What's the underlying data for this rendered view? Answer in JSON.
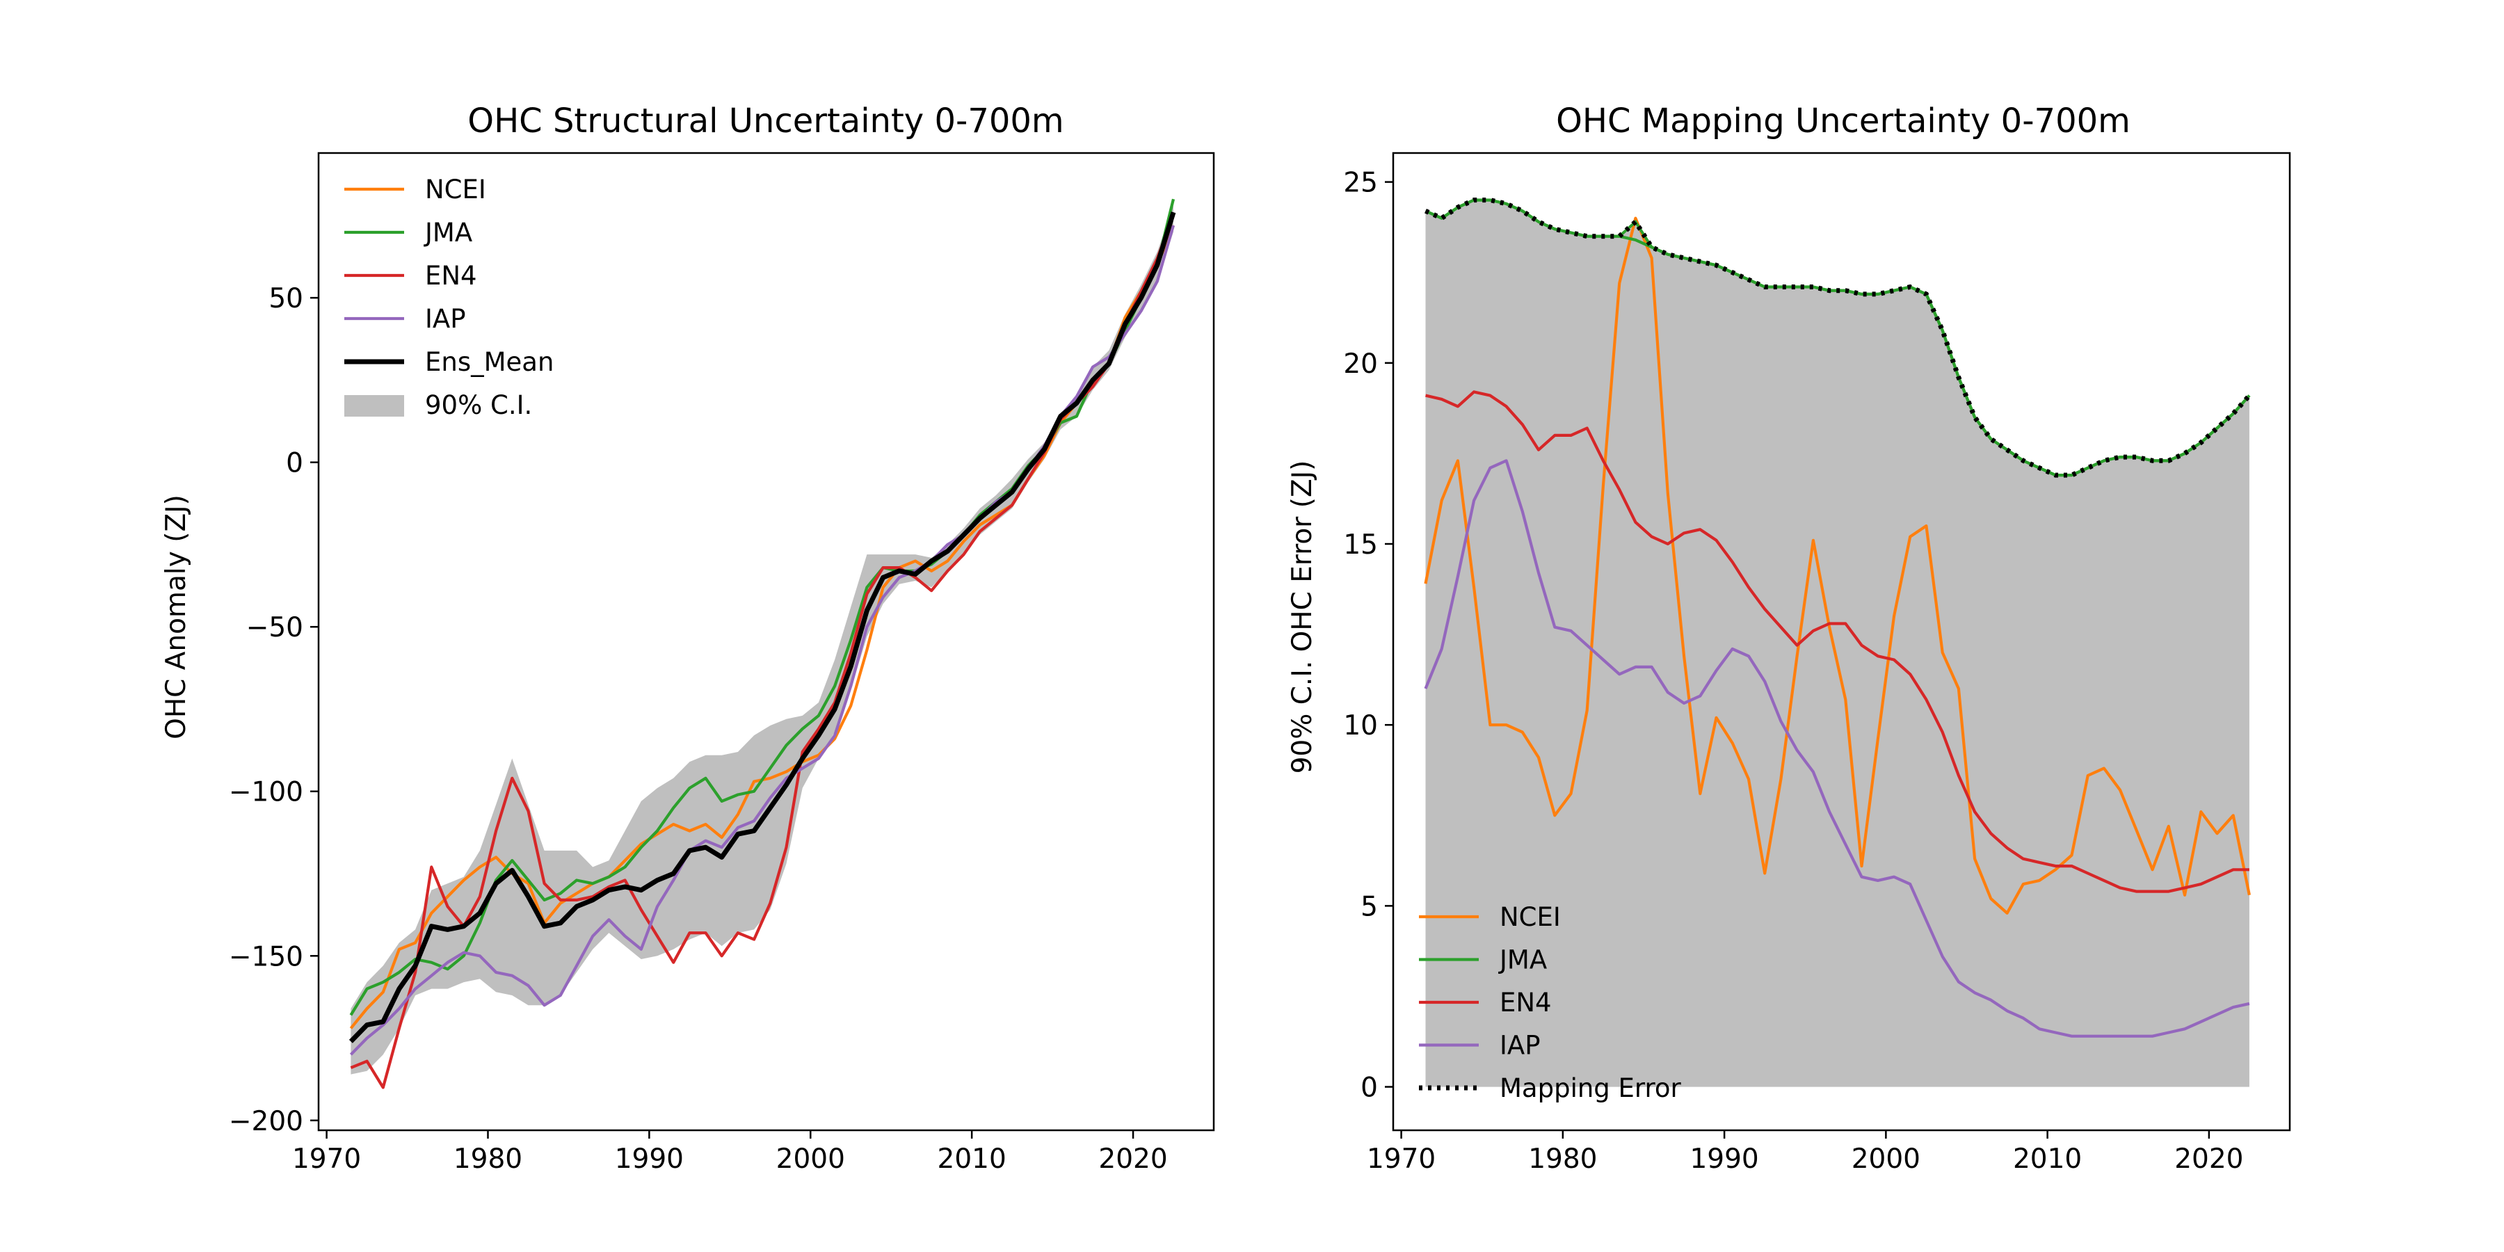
{
  "chart_data": [
    {
      "type": "line",
      "title": "OHC Structural Uncertainty 0-700m",
      "xlabel": "",
      "ylabel": "OHC Anomaly (ZJ)",
      "xlim": [
        1969.5,
        2025
      ],
      "ylim": [
        -203,
        94
      ],
      "xticks": [
        1970,
        1980,
        1990,
        2000,
        2010,
        2020
      ],
      "yticks": [
        -200,
        -150,
        -100,
        -50,
        0,
        50
      ],
      "grid": false,
      "legend_position": "top-left",
      "x": [
        1971.5,
        1972.5,
        1973.5,
        1974.5,
        1975.5,
        1976.5,
        1977.5,
        1978.5,
        1979.5,
        1980.5,
        1981.5,
        1982.5,
        1983.5,
        1984.5,
        1985.5,
        1986.5,
        1987.5,
        1988.5,
        1989.5,
        1990.5,
        1991.5,
        1992.5,
        1993.5,
        1994.5,
        1995.5,
        1996.5,
        1997.5,
        1998.5,
        1999.5,
        2000.5,
        2001.5,
        2002.5,
        2003.5,
        2004.5,
        2005.5,
        2006.5,
        2007.5,
        2008.5,
        2009.5,
        2010.5,
        2011.5,
        2012.5,
        2013.5,
        2014.5,
        2015.5,
        2016.5,
        2017.5,
        2018.5,
        2019.5,
        2020.5,
        2021.5,
        2022.5
      ],
      "series": [
        {
          "name": "NCEI",
          "color": "#ff7f0e",
          "values": [
            -172,
            -166,
            -161,
            -148,
            -146,
            -137,
            -132,
            -127,
            -123,
            -120,
            -125,
            -128,
            -140,
            -134,
            -131,
            -128,
            -126,
            -121,
            -116,
            -113,
            -110,
            -112,
            -110,
            -114,
            -107,
            -97,
            -96,
            -94,
            -91,
            -89,
            -84,
            -74,
            -57,
            -38,
            -32,
            -30,
            -33,
            -30,
            -24,
            -19,
            -16,
            -13,
            -5,
            2,
            12,
            18,
            25,
            30,
            44,
            52,
            60,
            72
          ]
        },
        {
          "name": "JMA",
          "color": "#2ca02c",
          "values": [
            -168,
            -160,
            -158,
            -155,
            -151,
            -152,
            -154,
            -150,
            -140,
            -127,
            -121,
            -127,
            -133,
            -131,
            -127,
            -128,
            -126,
            -123,
            -117,
            -112,
            -105,
            -99,
            -96,
            -103,
            -101,
            -100,
            -93,
            -86,
            -81,
            -77,
            -68,
            -54,
            -38,
            -32,
            -33,
            -33,
            -31,
            -27,
            -22,
            -16,
            -12,
            -8,
            -1,
            4,
            12,
            14,
            25,
            30,
            40,
            50,
            60,
            80
          ]
        },
        {
          "name": "EN4",
          "color": "#d62728",
          "values": [
            -184,
            -182,
            -190,
            -172,
            -155,
            -123,
            -135,
            -141,
            -132,
            -112,
            -96,
            -106,
            -128,
            -133,
            -133,
            -132,
            -129,
            -127,
            -136,
            -144,
            -152,
            -143,
            -143,
            -150,
            -143,
            -145,
            -134,
            -117,
            -88,
            -81,
            -73,
            -58,
            -40,
            -32,
            -32,
            -35,
            -39,
            -33,
            -28,
            -21,
            -17,
            -13,
            -5,
            3,
            13,
            18,
            23,
            30,
            42,
            52,
            62,
            75
          ]
        },
        {
          "name": "IAP",
          "color": "#9467bd",
          "values": [
            -180,
            -175,
            -171,
            -166,
            -160,
            -156,
            -152,
            -149,
            -150,
            -155,
            -156,
            -159,
            -165,
            -162,
            -153,
            -144,
            -139,
            -144,
            -148,
            -135,
            -127,
            -118,
            -115,
            -117,
            -111,
            -109,
            -102,
            -96,
            -93,
            -90,
            -83,
            -68,
            -50,
            -41,
            -35,
            -33,
            -30,
            -25,
            -22,
            -17,
            -12,
            -9,
            -2,
            5,
            14,
            20,
            29,
            32,
            39,
            46,
            55,
            72
          ]
        },
        {
          "name": "Ens_Mean",
          "color": "#000000",
          "values": [
            -176,
            -171,
            -170,
            -160,
            -153,
            -141,
            -142,
            -141,
            -137,
            -128,
            -124,
            -132,
            -141,
            -140,
            -135,
            -133,
            -130,
            -129,
            -130,
            -127,
            -125,
            -118,
            -117,
            -120,
            -113,
            -112,
            -105,
            -98,
            -90,
            -83,
            -75,
            -62,
            -45,
            -35,
            -33,
            -34,
            -30,
            -27,
            -22,
            -17,
            -13,
            -9,
            -2,
            4,
            14,
            18,
            25,
            30,
            42,
            50,
            60,
            76
          ]
        }
      ],
      "band": {
        "name": "90% C.I.",
        "color": "#bfbfbf",
        "upper": [
          -166,
          -158,
          -153,
          -146,
          -142,
          -130,
          -128,
          -126,
          -118,
          -104,
          -90,
          -104,
          -118,
          -118,
          -118,
          -123,
          -121,
          -112,
          -103,
          -99,
          -96,
          -91,
          -89,
          -89,
          -88,
          -83,
          -80,
          -78,
          -77,
          -73,
          -60,
          -44,
          -28,
          -28,
          -28,
          -28,
          -29,
          -25,
          -20,
          -14,
          -10,
          -5,
          1,
          6,
          15,
          20,
          29,
          34,
          45,
          54,
          64,
          78
        ],
        "lower": [
          -186,
          -185,
          -180,
          -172,
          -162,
          -160,
          -160,
          -158,
          -157,
          -161,
          -162,
          -165,
          -165,
          -162,
          -155,
          -148,
          -143,
          -147,
          -151,
          -150,
          -148,
          -145,
          -143,
          -147,
          -143,
          -142,
          -136,
          -122,
          -99,
          -90,
          -82,
          -69,
          -53,
          -43,
          -37,
          -36,
          -38,
          -33,
          -28,
          -22,
          -18,
          -14,
          -6,
          1,
          10,
          14,
          22,
          28,
          38,
          46,
          55,
          70
        ]
      }
    },
    {
      "type": "line",
      "title": "OHC Mapping Uncertainty 0-700m",
      "xlabel": "",
      "ylabel": "90% C.I. OHC Error (ZJ)",
      "xlim": [
        1969.5,
        2025
      ],
      "ylim": [
        -1.2,
        25.8
      ],
      "xticks": [
        1970,
        1980,
        1990,
        2000,
        2010,
        2020
      ],
      "yticks": [
        0,
        5,
        10,
        15,
        20,
        25
      ],
      "grid": false,
      "legend_position": "bottom-left",
      "x": [
        1971.5,
        1972.5,
        1973.5,
        1974.5,
        1975.5,
        1976.5,
        1977.5,
        1978.5,
        1979.5,
        1980.5,
        1981.5,
        1982.5,
        1983.5,
        1984.5,
        1985.5,
        1986.5,
        1987.5,
        1988.5,
        1989.5,
        1990.5,
        1991.5,
        1992.5,
        1993.5,
        1994.5,
        1995.5,
        1996.5,
        1997.5,
        1998.5,
        1999.5,
        2000.5,
        2001.5,
        2002.5,
        2003.5,
        2004.5,
        2005.5,
        2006.5,
        2007.5,
        2008.5,
        2009.5,
        2010.5,
        2011.5,
        2012.5,
        2013.5,
        2014.5,
        2015.5,
        2016.5,
        2017.5,
        2018.5,
        2019.5,
        2020.5,
        2021.5,
        2022.5
      ],
      "series": [
        {
          "name": "NCEI",
          "color": "#ff7f0e",
          "values": [
            13.9,
            16.2,
            17.3,
            13.8,
            10.0,
            10.0,
            9.8,
            9.1,
            7.5,
            8.1,
            10.4,
            16.6,
            22.2,
            24.0,
            22.9,
            16.4,
            11.9,
            8.1,
            10.2,
            9.5,
            8.5,
            5.9,
            8.5,
            11.9,
            15.1,
            12.7,
            10.7,
            6.1,
            9.6,
            13.0,
            15.2,
            15.5,
            12.0,
            11.0,
            6.3,
            5.2,
            4.8,
            5.6,
            5.7,
            6.0,
            6.4,
            8.6,
            8.8,
            8.2,
            7.1,
            6.0,
            7.2,
            5.3,
            7.6,
            7.0,
            7.5,
            5.3
          ]
        },
        {
          "name": "JMA",
          "color": "#2ca02c",
          "values": [
            24.2,
            24.0,
            24.3,
            24.5,
            24.5,
            24.4,
            24.2,
            23.9,
            23.7,
            23.6,
            23.5,
            23.5,
            23.5,
            23.4,
            23.2,
            23.0,
            22.9,
            22.8,
            22.7,
            22.5,
            22.3,
            22.1,
            22.1,
            22.1,
            22.1,
            22.0,
            22.0,
            21.9,
            21.9,
            22.0,
            22.1,
            21.9,
            20.9,
            19.6,
            18.5,
            17.9,
            17.6,
            17.3,
            17.1,
            16.9,
            16.9,
            17.1,
            17.3,
            17.4,
            17.4,
            17.3,
            17.3,
            17.5,
            17.8,
            18.2,
            18.6,
            19.1
          ]
        },
        {
          "name": "EN4",
          "color": "#d62728",
          "values": [
            19.1,
            19.0,
            18.8,
            19.2,
            19.1,
            18.8,
            18.3,
            17.6,
            18.0,
            18.0,
            18.2,
            17.3,
            16.5,
            15.6,
            15.2,
            15.0,
            15.3,
            15.4,
            15.1,
            14.5,
            13.8,
            13.2,
            12.7,
            12.2,
            12.6,
            12.8,
            12.8,
            12.2,
            11.9,
            11.8,
            11.4,
            10.7,
            9.8,
            8.6,
            7.6,
            7.0,
            6.6,
            6.3,
            6.2,
            6.1,
            6.1,
            5.9,
            5.7,
            5.5,
            5.4,
            5.4,
            5.4,
            5.5,
            5.6,
            5.8,
            6.0,
            6.0
          ]
        },
        {
          "name": "IAP",
          "color": "#9467bd",
          "values": [
            11.0,
            12.1,
            14.1,
            16.2,
            17.1,
            17.3,
            15.9,
            14.2,
            12.7,
            12.6,
            12.2,
            11.8,
            11.4,
            11.6,
            11.6,
            10.9,
            10.6,
            10.8,
            11.5,
            12.1,
            11.9,
            11.2,
            10.1,
            9.3,
            8.7,
            7.6,
            6.7,
            5.8,
            5.7,
            5.8,
            5.6,
            4.6,
            3.6,
            2.9,
            2.6,
            2.4,
            2.1,
            1.9,
            1.6,
            1.5,
            1.4,
            1.4,
            1.4,
            1.4,
            1.4,
            1.4,
            1.5,
            1.6,
            1.8,
            2.0,
            2.2,
            2.3
          ]
        },
        {
          "name": "Mapping Error",
          "color": "#000000",
          "dash": "dotted",
          "values": [
            24.2,
            24.0,
            24.3,
            24.5,
            24.5,
            24.4,
            24.2,
            23.9,
            23.7,
            23.6,
            23.5,
            23.5,
            23.5,
            23.9,
            23.2,
            23.0,
            22.9,
            22.8,
            22.7,
            22.5,
            22.3,
            22.1,
            22.1,
            22.1,
            22.1,
            22.0,
            22.0,
            21.9,
            21.9,
            22.0,
            22.1,
            21.9,
            20.9,
            19.6,
            18.5,
            17.9,
            17.6,
            17.3,
            17.1,
            16.9,
            16.9,
            17.1,
            17.3,
            17.4,
            17.4,
            17.3,
            17.3,
            17.5,
            17.8,
            18.2,
            18.6,
            19.1
          ]
        }
      ]
    }
  ]
}
